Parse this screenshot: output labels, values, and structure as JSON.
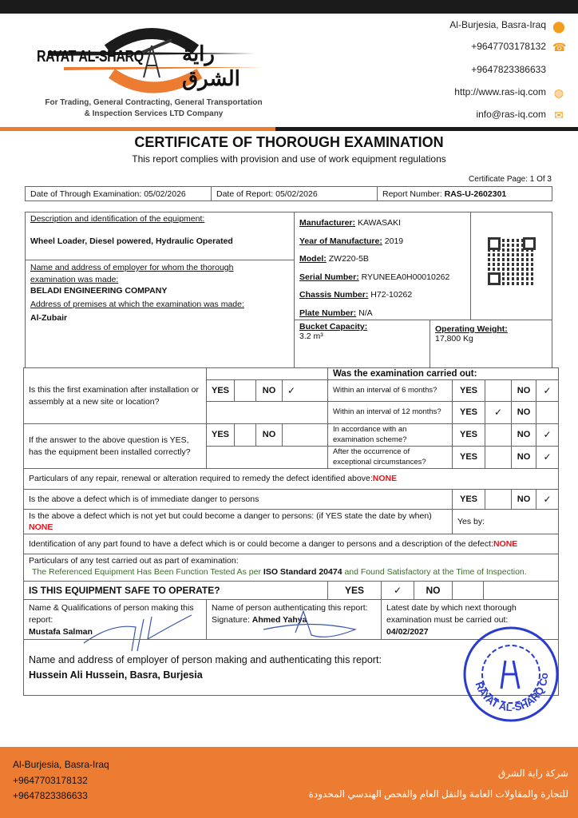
{
  "header": {
    "company_en": "RAYAT AL-SHARQ",
    "company_ar": "راية الشرق",
    "tagline_1": "For Trading, General Contracting, General Transportation",
    "tagline_2": "& Inspection Services LTD Company",
    "contacts": [
      {
        "text": "Al-Burjesia, Basra-Iraq",
        "icon": "location-pin-icon"
      },
      {
        "text": "+9647703178132",
        "icon": "phone-icon"
      },
      {
        "text": "+9647823386633",
        "icon": ""
      },
      {
        "text": "http://www.ras-iq.com",
        "icon": "globe-icon"
      },
      {
        "text": "info@ras-iq.com",
        "icon": "envelope-icon"
      }
    ]
  },
  "colors": {
    "accent": "#ec7c32",
    "dark": "#1b1b1b",
    "red": "#e8141b",
    "green": "#3b6b2c",
    "stamp": "#2a3bd1"
  },
  "title": "CERTIFICATE OF THOROUGH EXAMINATION",
  "subtitle": "This report complies with provision and use of work equipment regulations",
  "page": "Certificate Page: 1 Of 3",
  "dates": {
    "exam": "Date of Through Examination: 05/02/2026",
    "report": "Date of Report: 05/02/2026",
    "number_label": "Report Number: ",
    "number": "RAS-U-2602301"
  },
  "equipment": {
    "desc_label": "Description and identification of the equipment:",
    "desc": "Wheel Loader, Diesel powered, Hydraulic Operated",
    "employer_label": "Name and address of employer for whom the thorough examination was made:",
    "employer": "BELADI ENGINEERING COMPANY",
    "premises_label": "Address of premises at which the examination was made:",
    "premises": "Al-Zubair",
    "manufacturer_label": "Manufacturer:",
    "manufacturer": "KAWASAKI",
    "year_label": "Year of Manufacture:",
    "year": "2019",
    "model_label": "Model:",
    "model": "ZW220-5B",
    "serial_label": "Serial Number:",
    "serial": "RYUNEEA0H00010262",
    "chassis_label": "Chassis Number:",
    "chassis": "H72-10262",
    "plate_label": "Plate Number:",
    "plate": "N/A",
    "bucket_label": "Bucket Capacity:",
    "bucket": "3.2 m³",
    "weight_label": "Operating Weight:",
    "weight": "17,800 Kg"
  },
  "exam": {
    "q1": "Is this the first examination after installation or assembly at a new site or location?",
    "q2": "If the answer to the above question is YES, has the equipment been installed correctly?",
    "carried_out": "Was the examination carried out:",
    "yes": "YES",
    "no": "NO",
    "check": "✓",
    "intervals": [
      {
        "label": "Within an interval of 6 months?",
        "answer": "NO"
      },
      {
        "label": "Within an interval of 12 months?",
        "answer": "YES"
      },
      {
        "label": "In accordance with an examination scheme?",
        "answer": "NO"
      },
      {
        "label": "After the occurrence of exceptional circumstances?",
        "answer": "NO"
      }
    ],
    "q1_answer": "NO"
  },
  "defects": {
    "repair": "Particulars of any repair, renewal or alteration required to remedy the defect identified above: ",
    "repair_val": "NONE",
    "immediate": "Is the above a defect which is of immediate danger to persons",
    "immediate_answer": "NO",
    "future": "Is the above a defect which is not yet but could become a danger to persons: (if YES state the date by when) ",
    "future_val": "NONE",
    "yes_by": "Yes by:",
    "ident": "Identification of any part found to have a defect which is or could become a danger to persons and a description of the defect: ",
    "ident_val": "NONE",
    "tests_label": "Particulars of any test carried out as part of examination:",
    "tests_a": "The Referenced Equipment Has Been Function Tested As per ",
    "tests_b": "ISO Standard 20474",
    "tests_c": " and Found Satisfactory at the Time of Inspection."
  },
  "safe": {
    "question": "IS THIS EQUIPMENT SAFE TO OPERATE?",
    "answer": "YES"
  },
  "signatures": {
    "maker_label": "Name & Qualifications of person making this report:",
    "maker": "Mustafa Salman",
    "auth_label": "Name of person authenticating this report:",
    "auth_sig_label": "Signature: ",
    "auth": "Ahmed Yahya",
    "next_label": "Latest date by which next thorough examination must be carried out:",
    "next": "04/02/2027"
  },
  "employer_report": {
    "label": "Name and address of employer of person making and authenticating this report:",
    "value": "Hussein Ali Hussein, Basra, Burjesia"
  },
  "stamp": {
    "text": "RAYAT AL-SHARQ Co.",
    "ar": "شركة راية الشرق"
  },
  "footer": {
    "lines": [
      "Al-Burjesia, Basra-Iraq",
      "+9647703178132",
      "+9647823386633"
    ],
    "ar_1": "شركة راية الشرق",
    "ar_2": "للتجارة والمقاولات العامة والنقل العام والفحص الهندسي المحدودة"
  }
}
